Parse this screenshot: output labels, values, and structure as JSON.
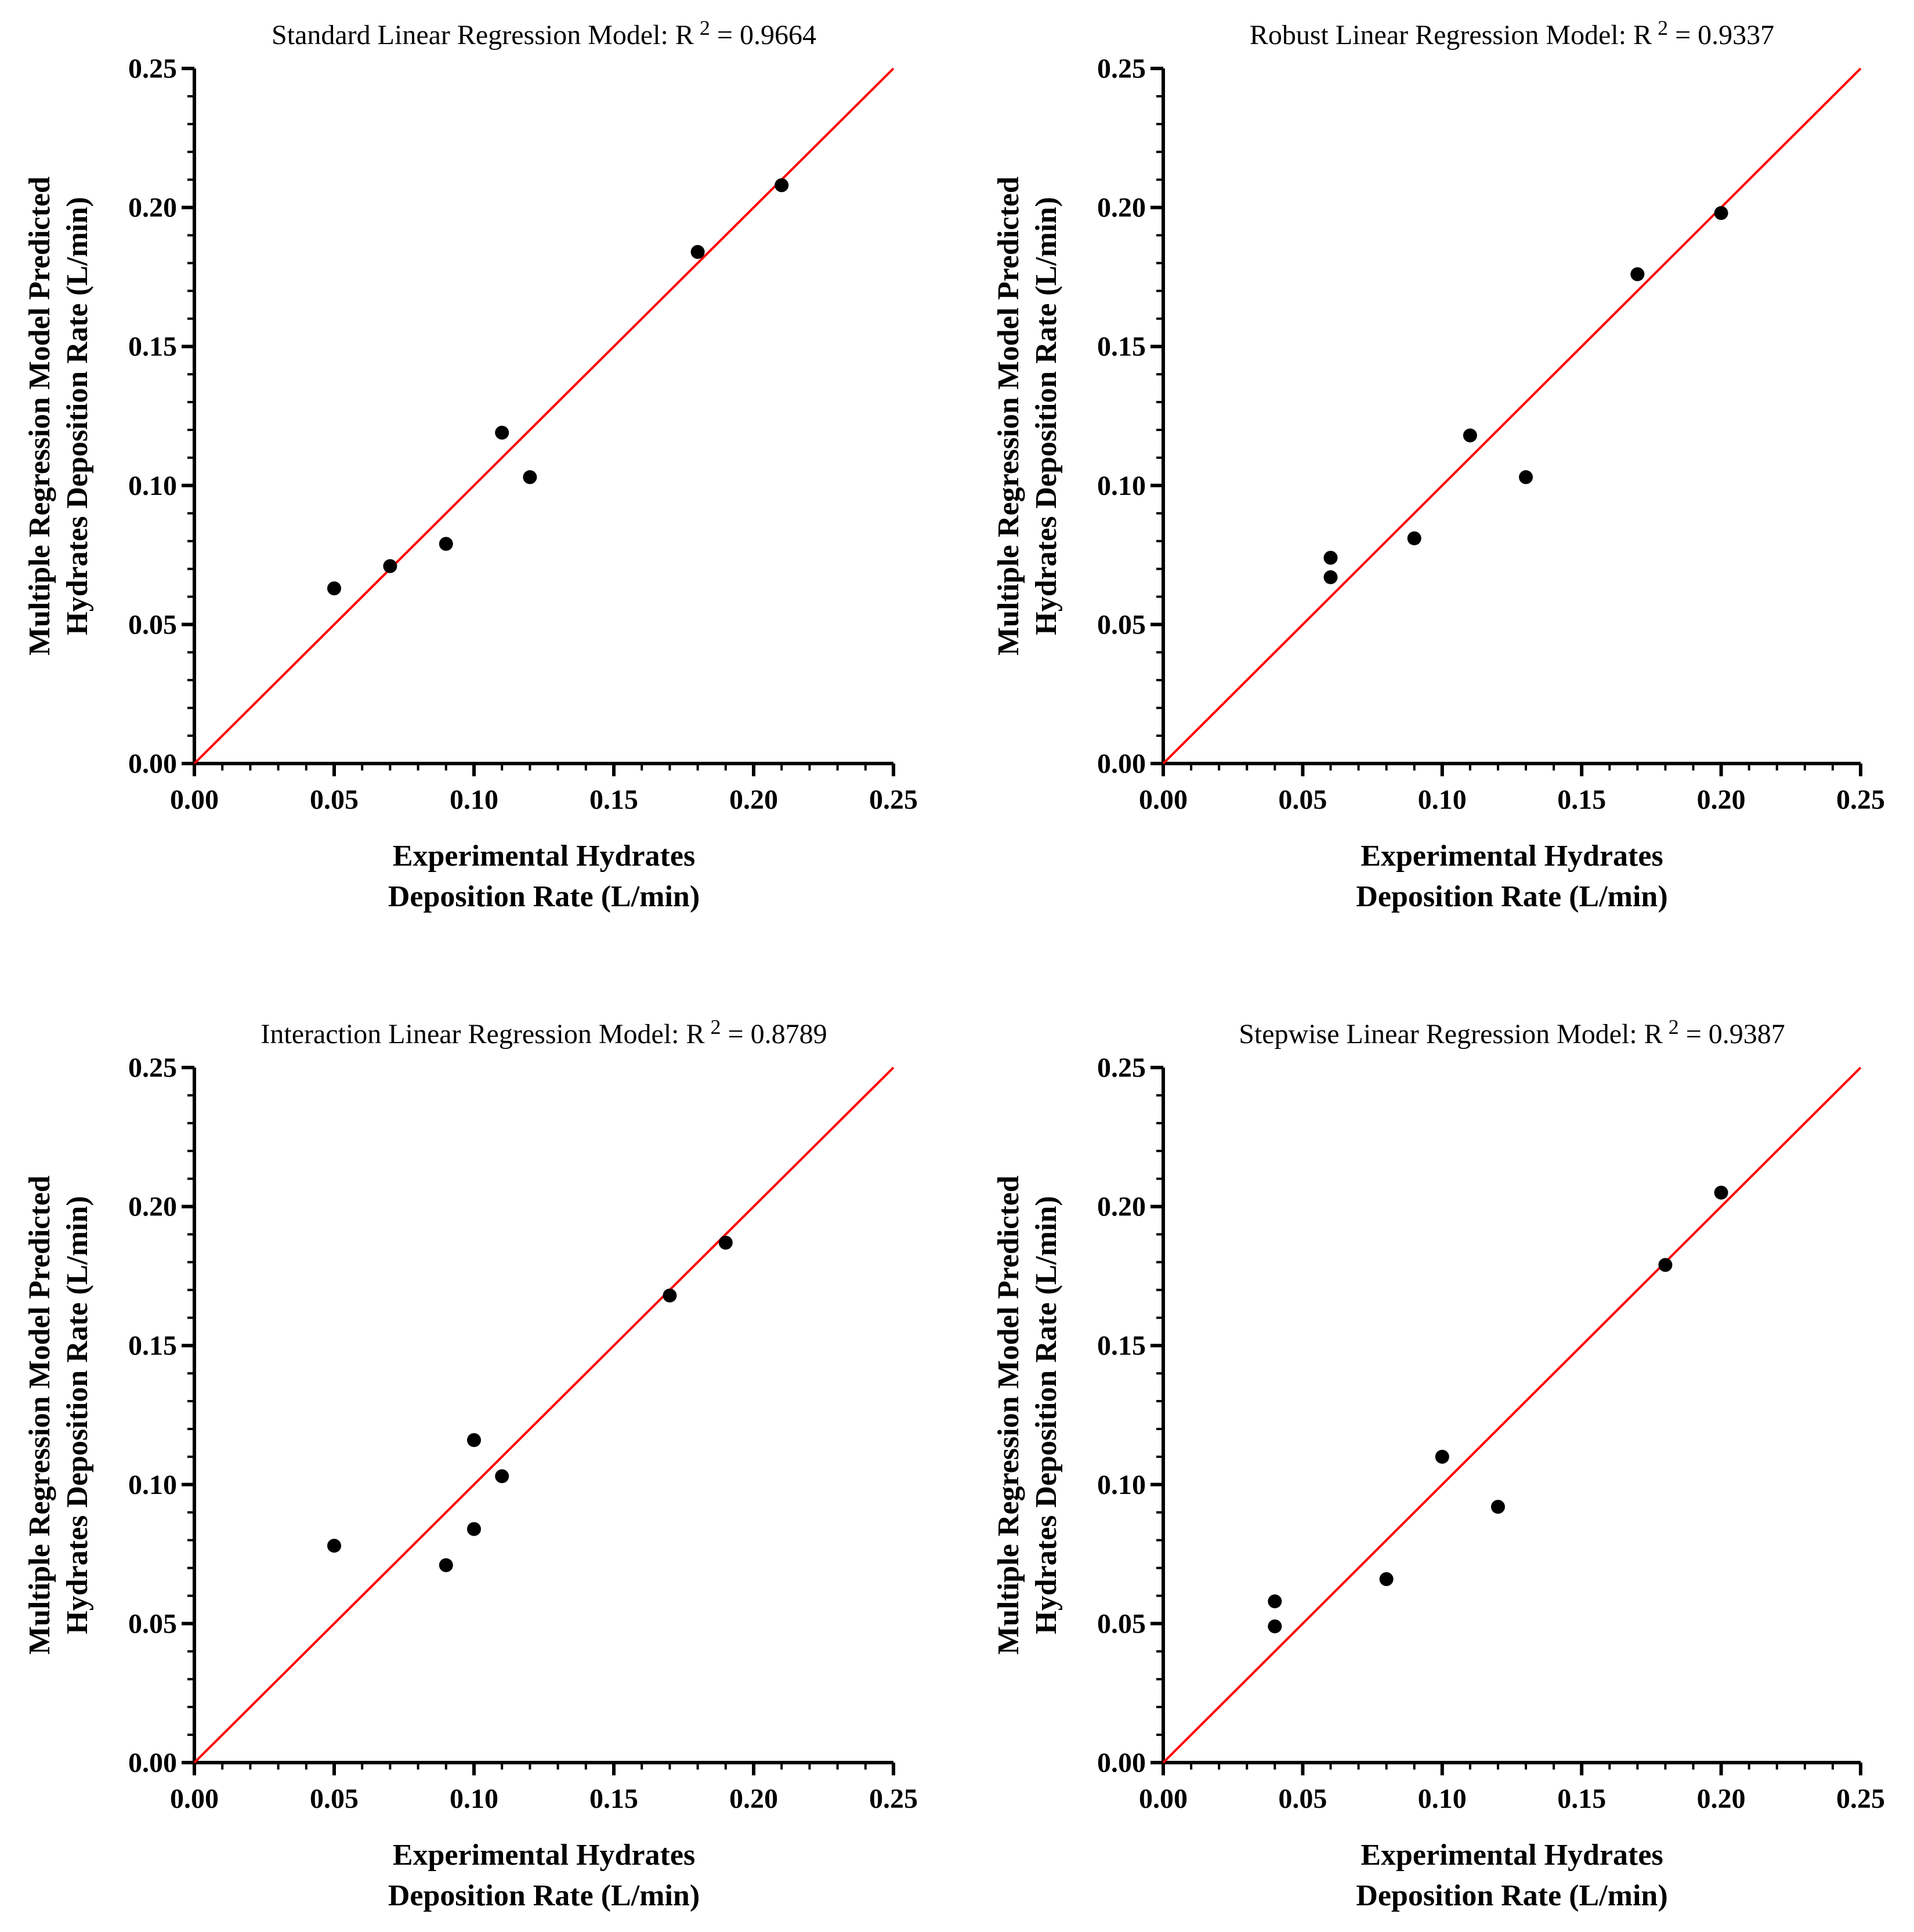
{
  "figure": {
    "axis_color": "#000000",
    "line_color": "#ff0000",
    "point_color": "#000000"
  },
  "chart_data": [
    {
      "type": "scatter",
      "title_text": "Standard Linear Regression Model: R",
      "title_sup": "2",
      "title_value": " = 0.9664",
      "xlabel_line1": "Experimental Hydrates",
      "xlabel_line2": "Deposition Rate (L/min)",
      "ylabel_line1": "Multiple Regression Model Predicted",
      "ylabel_line2": "Hydrates Deposition Rate (L/min)",
      "xlim": [
        0,
        0.25
      ],
      "ylim": [
        0,
        0.25
      ],
      "xticks": [
        "0.00",
        "0.05",
        "0.10",
        "0.15",
        "0.20",
        "0.25"
      ],
      "yticks": [
        "0.00",
        "0.05",
        "0.10",
        "0.15",
        "0.20",
        "0.25"
      ],
      "reference_line": "y = x",
      "x": [
        0.05,
        0.07,
        0.09,
        0.11,
        0.12,
        0.18,
        0.21
      ],
      "y": [
        0.063,
        0.071,
        0.079,
        0.119,
        0.103,
        0.184,
        0.208
      ]
    },
    {
      "type": "scatter",
      "title_text": "Robust Linear Regression Model: R",
      "title_sup": "2",
      "title_value": " = 0.9337",
      "xlabel_line1": "Experimental Hydrates",
      "xlabel_line2": "Deposition Rate (L/min)",
      "ylabel_line1": "Multiple Regression Model Predicted",
      "ylabel_line2": "Hydrates Deposition Rate (L/min)",
      "xlim": [
        0,
        0.25
      ],
      "ylim": [
        0,
        0.25
      ],
      "xticks": [
        "0.00",
        "0.05",
        "0.10",
        "0.15",
        "0.20",
        "0.25"
      ],
      "yticks": [
        "0.00",
        "0.05",
        "0.10",
        "0.15",
        "0.20",
        "0.25"
      ],
      "reference_line": "y = x",
      "x": [
        0.06,
        0.06,
        0.09,
        0.11,
        0.13,
        0.17,
        0.2
      ],
      "y": [
        0.074,
        0.067,
        0.081,
        0.118,
        0.103,
        0.176,
        0.198
      ]
    },
    {
      "type": "scatter",
      "title_text": "Interaction Linear Regression Model: R",
      "title_sup": "2",
      "title_value": " = 0.8789",
      "xlabel_line1": "Experimental Hydrates",
      "xlabel_line2": "Deposition Rate (L/min)",
      "ylabel_line1": "Multiple Regression Model Predicted",
      "ylabel_line2": "Hydrates Deposition Rate (L/min)",
      "xlim": [
        0,
        0.25
      ],
      "ylim": [
        0,
        0.25
      ],
      "xticks": [
        "0.00",
        "0.05",
        "0.10",
        "0.15",
        "0.20",
        "0.25"
      ],
      "yticks": [
        "0.00",
        "0.05",
        "0.10",
        "0.15",
        "0.20",
        "0.25"
      ],
      "reference_line": "y = x",
      "x": [
        0.05,
        0.09,
        0.1,
        0.1,
        0.11,
        0.17,
        0.19
      ],
      "y": [
        0.078,
        0.071,
        0.116,
        0.084,
        0.103,
        0.168,
        0.187
      ]
    },
    {
      "type": "scatter",
      "title_text": "Stepwise Linear Regression Model: R",
      "title_sup": "2",
      "title_value": " = 0.9387",
      "xlabel_line1": "Experimental Hydrates",
      "xlabel_line2": "Deposition Rate (L/min)",
      "ylabel_line1": "Multiple Regression Model Predicted",
      "ylabel_line2": "Hydrates Deposition Rate (L/min)",
      "xlim": [
        0,
        0.25
      ],
      "ylim": [
        0,
        0.25
      ],
      "xticks": [
        "0.00",
        "0.05",
        "0.10",
        "0.15",
        "0.20",
        "0.25"
      ],
      "yticks": [
        "0.00",
        "0.05",
        "0.10",
        "0.15",
        "0.20",
        "0.25"
      ],
      "reference_line": "y = x",
      "x": [
        0.04,
        0.04,
        0.08,
        0.1,
        0.12,
        0.18,
        0.2
      ],
      "y": [
        0.058,
        0.049,
        0.066,
        0.11,
        0.092,
        0.179,
        0.205
      ]
    }
  ]
}
